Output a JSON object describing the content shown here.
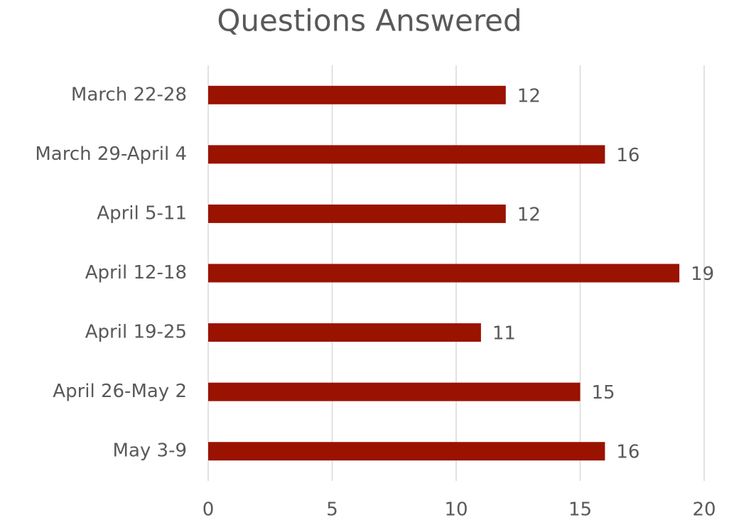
{
  "chart_data": {
    "type": "bar",
    "orientation": "horizontal",
    "title": "Questions Answered",
    "categories": [
      "March 22-28",
      "March 29-April 4",
      "April 5-11",
      "April 12-18",
      "April 19-25",
      "April 26-May 2",
      "May 3-9"
    ],
    "values": [
      12,
      16,
      12,
      19,
      11,
      15,
      16
    ],
    "color": "#9a1200",
    "xlim": [
      0,
      20
    ],
    "xticks": [
      0,
      5,
      10,
      15,
      20
    ],
    "grid": true
  }
}
